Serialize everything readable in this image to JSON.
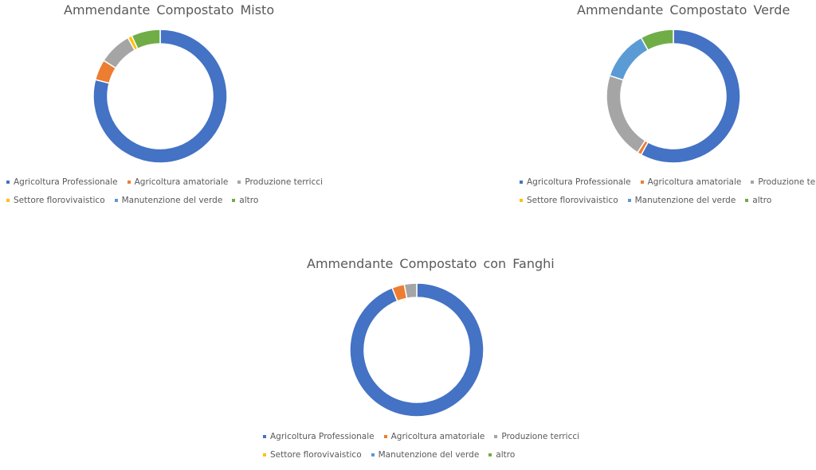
{
  "chart_data": [
    {
      "type": "pie",
      "variant": "donut",
      "title": "Ammendante Compostato Misto",
      "categories": [
        "Agricoltura Professionale",
        "Agricoltura amatoriale",
        "Produzione terricci",
        "Settore florovivaistico",
        "Manutenzione del verde",
        "altro"
      ],
      "values": [
        79,
        5,
        8,
        1,
        0,
        7
      ],
      "legend_position": "bottom"
    },
    {
      "type": "pie",
      "variant": "donut",
      "title": "Ammendante Compostato Verde",
      "categories": [
        "Agricoltura Professionale",
        "Agricoltura amatoriale",
        "Produzione terricci",
        "Settore florovivaistico",
        "Manutenzione del verde",
        "altro"
      ],
      "values": [
        58,
        1,
        21,
        0,
        12,
        8
      ],
      "legend_position": "bottom"
    },
    {
      "type": "pie",
      "variant": "donut",
      "title": "Ammendante Compostato con Fanghi",
      "categories": [
        "Agricoltura Professionale",
        "Agricoltura amatoriale",
        "Produzione terricci",
        "Settore florovivaistico",
        "Manutenzione del verde",
        "altro"
      ],
      "values": [
        94,
        3,
        3,
        0,
        0,
        0
      ],
      "legend_position": "bottom"
    }
  ],
  "colors": [
    "#4472C4",
    "#ED7D31",
    "#A5A5A5",
    "#FFC000",
    "#5B9BD5",
    "#70AD47"
  ]
}
